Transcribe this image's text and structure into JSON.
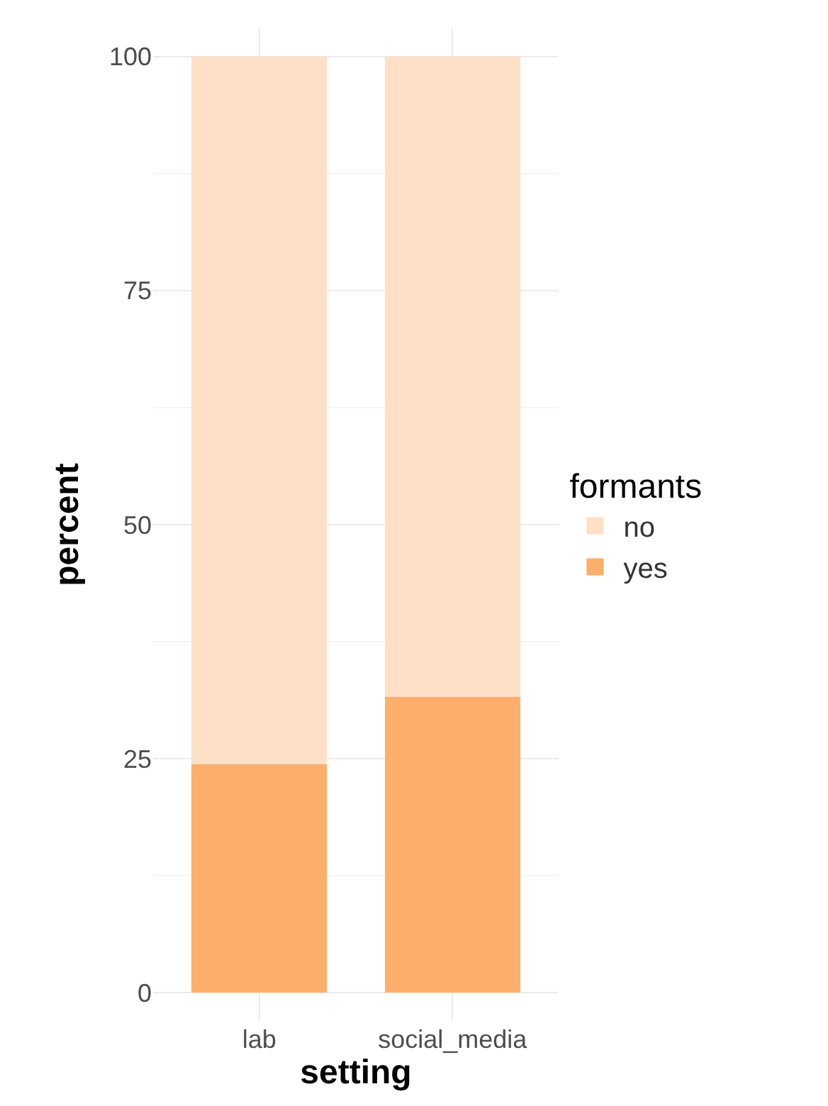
{
  "chart_data": {
    "type": "bar",
    "stacked": true,
    "xlabel": "setting",
    "ylabel": "percent",
    "legend_title": "formants",
    "categories": [
      "lab",
      "social_media"
    ],
    "series": [
      {
        "name": "yes",
        "color": "#fdae6b",
        "values": [
          24.4,
          31.6
        ]
      },
      {
        "name": "no",
        "color": "#fde0c5",
        "values": [
          75.6,
          68.4
        ]
      }
    ],
    "ylim": [
      -3,
      103
    ],
    "yticks": [
      0,
      25,
      50,
      75,
      100
    ],
    "grid": true,
    "legend": "right"
  }
}
